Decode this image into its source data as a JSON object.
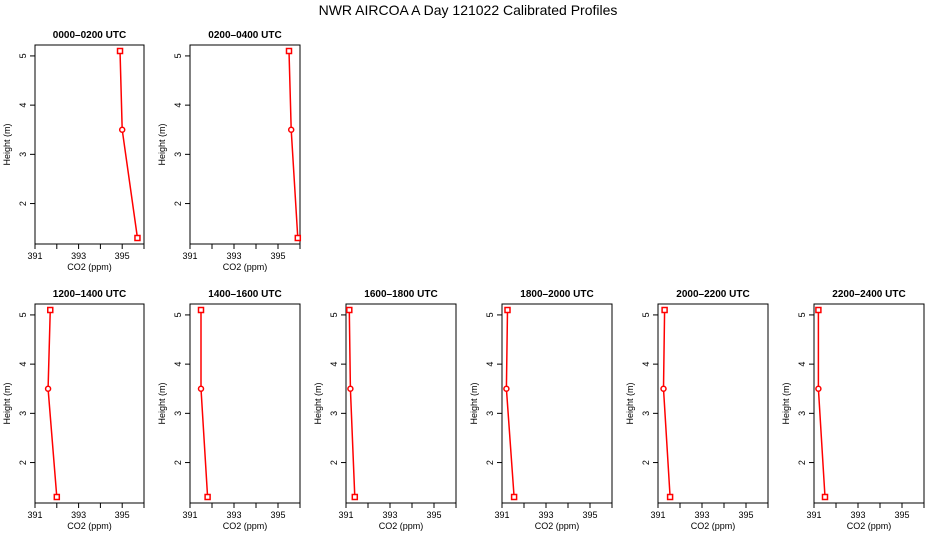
{
  "title": "NWR AIRCOA A  Day 121022  Calibrated Profiles",
  "colors": {
    "series": "#ff0000",
    "axis": "#000000",
    "background": "#ffffff"
  },
  "chart_data": [
    {
      "type": "line",
      "title": "0000–0200 UTC",
      "xlabel": "CO2 (ppm)",
      "ylabel": "Height (m)",
      "xlim": [
        391,
        396
      ],
      "ylim": [
        1.3,
        5.1
      ],
      "xticks": [
        391,
        392,
        393,
        394,
        395,
        396
      ],
      "xtick_labels": [
        "391",
        "",
        "393",
        "",
        "395",
        ""
      ],
      "yticks": [
        2,
        3,
        4,
        5
      ],
      "ytick_labels": [
        "2",
        "3",
        "4",
        "5"
      ],
      "series": [
        {
          "x": [
            394.9,
            395.0,
            395.7
          ],
          "y": [
            5.1,
            3.5,
            1.3
          ]
        }
      ]
    },
    {
      "type": "line",
      "title": "0200–0400 UTC",
      "xlabel": "CO2 (ppm)",
      "ylabel": "Height (m)",
      "xlim": [
        391,
        396
      ],
      "ylim": [
        1.3,
        5.1
      ],
      "xticks": [
        391,
        392,
        393,
        394,
        395,
        396
      ],
      "xtick_labels": [
        "391",
        "",
        "393",
        "",
        "395",
        ""
      ],
      "yticks": [
        2,
        3,
        4,
        5
      ],
      "ytick_labels": [
        "2",
        "3",
        "4",
        "5"
      ],
      "series": [
        {
          "x": [
            395.5,
            395.6,
            395.9
          ],
          "y": [
            5.1,
            3.5,
            1.3
          ]
        }
      ]
    },
    {
      "type": "line",
      "title": "1200–1400 UTC",
      "xlabel": "CO2 (ppm)",
      "ylabel": "Height (m)",
      "xlim": [
        391,
        396
      ],
      "ylim": [
        1.3,
        5.1
      ],
      "xticks": [
        391,
        392,
        393,
        394,
        395,
        396
      ],
      "xtick_labels": [
        "391",
        "",
        "393",
        "",
        "395",
        ""
      ],
      "yticks": [
        2,
        3,
        4,
        5
      ],
      "ytick_labels": [
        "2",
        "3",
        "4",
        "5"
      ],
      "series": [
        {
          "x": [
            391.7,
            391.6,
            392.0
          ],
          "y": [
            5.1,
            3.5,
            1.3
          ]
        }
      ]
    },
    {
      "type": "line",
      "title": "1400–1600 UTC",
      "xlabel": "CO2 (ppm)",
      "ylabel": "Height (m)",
      "xlim": [
        391,
        396
      ],
      "ylim": [
        1.3,
        5.1
      ],
      "xticks": [
        391,
        392,
        393,
        394,
        395,
        396
      ],
      "xtick_labels": [
        "391",
        "",
        "393",
        "",
        "395",
        ""
      ],
      "yticks": [
        2,
        3,
        4,
        5
      ],
      "ytick_labels": [
        "2",
        "3",
        "4",
        "5"
      ],
      "series": [
        {
          "x": [
            391.5,
            391.5,
            391.8
          ],
          "y": [
            5.1,
            3.5,
            1.3
          ]
        }
      ]
    },
    {
      "type": "line",
      "title": "1600–1800 UTC",
      "xlabel": "CO2 (ppm)",
      "ylabel": "Height (m)",
      "xlim": [
        391,
        396
      ],
      "ylim": [
        1.3,
        5.1
      ],
      "xticks": [
        391,
        392,
        393,
        394,
        395,
        396
      ],
      "xtick_labels": [
        "391",
        "",
        "393",
        "",
        "395",
        ""
      ],
      "yticks": [
        2,
        3,
        4,
        5
      ],
      "ytick_labels": [
        "2",
        "3",
        "4",
        "5"
      ],
      "series": [
        {
          "x": [
            391.15,
            391.2,
            391.4
          ],
          "y": [
            5.1,
            3.5,
            1.3
          ]
        }
      ]
    },
    {
      "type": "line",
      "title": "1800–2000 UTC",
      "xlabel": "CO2 (ppm)",
      "ylabel": "Height (m)",
      "xlim": [
        391,
        396
      ],
      "ylim": [
        1.3,
        5.1
      ],
      "xticks": [
        391,
        392,
        393,
        394,
        395,
        396
      ],
      "xtick_labels": [
        "391",
        "",
        "393",
        "",
        "395",
        ""
      ],
      "yticks": [
        2,
        3,
        4,
        5
      ],
      "ytick_labels": [
        "2",
        "3",
        "4",
        "5"
      ],
      "series": [
        {
          "x": [
            391.25,
            391.2,
            391.55
          ],
          "y": [
            5.1,
            3.5,
            1.3
          ]
        }
      ]
    },
    {
      "type": "line",
      "title": "2000–2200 UTC",
      "xlabel": "CO2 (ppm)",
      "ylabel": "Height (m)",
      "xlim": [
        391,
        396
      ],
      "ylim": [
        1.3,
        5.1
      ],
      "xticks": [
        391,
        392,
        393,
        394,
        395,
        396
      ],
      "xtick_labels": [
        "391",
        "",
        "393",
        "",
        "395",
        ""
      ],
      "yticks": [
        2,
        3,
        4,
        5
      ],
      "ytick_labels": [
        "2",
        "3",
        "4",
        "5"
      ],
      "series": [
        {
          "x": [
            391.3,
            391.25,
            391.55
          ],
          "y": [
            5.1,
            3.5,
            1.3
          ]
        }
      ]
    },
    {
      "type": "line",
      "title": "2200–2400 UTC",
      "xlabel": "CO2 (ppm)",
      "ylabel": "Height (m)",
      "xlim": [
        391,
        396
      ],
      "ylim": [
        1.3,
        5.1
      ],
      "xticks": [
        391,
        392,
        393,
        394,
        395,
        396
      ],
      "xtick_labels": [
        "391",
        "",
        "393",
        "",
        "395",
        ""
      ],
      "yticks": [
        2,
        3,
        4,
        5
      ],
      "ytick_labels": [
        "2",
        "3",
        "4",
        "5"
      ],
      "series": [
        {
          "x": [
            391.2,
            391.2,
            391.5
          ],
          "y": [
            5.1,
            3.5,
            1.3
          ]
        }
      ]
    }
  ]
}
